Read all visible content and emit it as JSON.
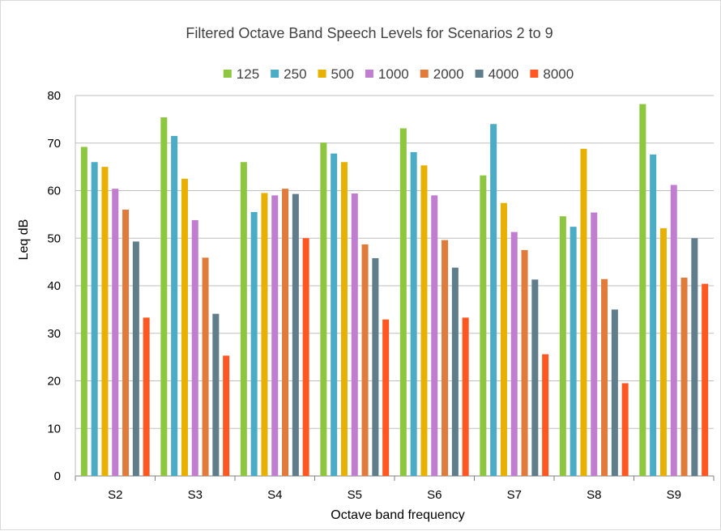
{
  "chart_data": {
    "type": "bar",
    "title": "Filtered Octave Band Speech Levels for Scenarios 2 to 9",
    "xlabel": "Octave band frequency",
    "ylabel": "Leq dB",
    "ylim": [
      0,
      80
    ],
    "yticks": [
      0,
      10,
      20,
      30,
      40,
      50,
      60,
      70,
      80
    ],
    "grid": true,
    "legend_position": "top",
    "categories": [
      "S2",
      "S3",
      "S4",
      "S5",
      "S6",
      "S7",
      "S8",
      "S9"
    ],
    "series": [
      {
        "name": "125",
        "color": "#8dc63f",
        "values": [
          69.2,
          75.4,
          66.0,
          70.1,
          73.1,
          63.2,
          54.6,
          78.2
        ]
      },
      {
        "name": "250",
        "color": "#4bacc6",
        "values": [
          66.0,
          71.5,
          55.5,
          67.8,
          68.1,
          74.0,
          52.4,
          67.6
        ]
      },
      {
        "name": "500",
        "color": "#e8b000",
        "values": [
          65.0,
          62.5,
          59.5,
          66.0,
          65.3,
          57.4,
          68.8,
          52.1
        ]
      },
      {
        "name": "1000",
        "color": "#c17dcf",
        "values": [
          60.4,
          53.8,
          59.0,
          59.4,
          59.0,
          51.3,
          55.4,
          61.2
        ]
      },
      {
        "name": "2000",
        "color": "#e07b3c",
        "values": [
          56.0,
          45.9,
          60.4,
          48.7,
          49.6,
          47.5,
          41.4,
          41.7
        ]
      },
      {
        "name": "4000",
        "color": "#607d8b",
        "values": [
          49.3,
          34.1,
          59.3,
          45.8,
          43.8,
          41.3,
          35.0,
          50.0
        ]
      },
      {
        "name": "8000",
        "color": "#ff5722",
        "values": [
          33.3,
          25.3,
          50.0,
          32.9,
          33.3,
          25.6,
          19.5,
          40.4
        ]
      }
    ]
  }
}
